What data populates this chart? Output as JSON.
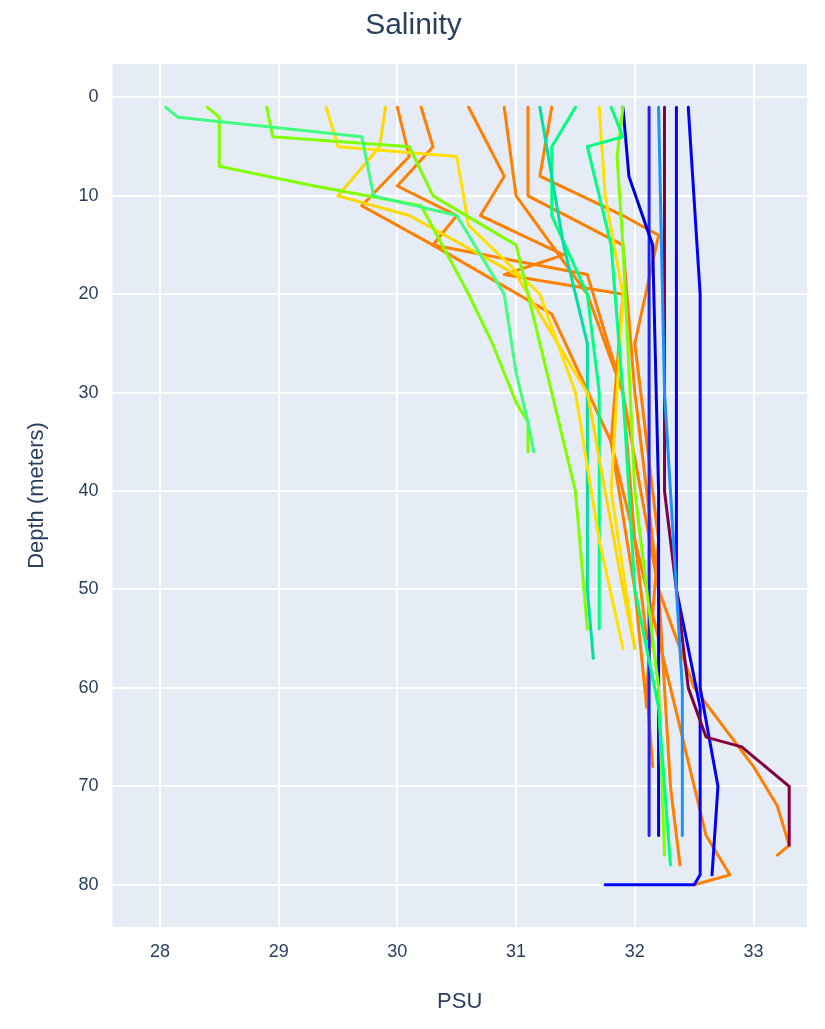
{
  "chart_data": {
    "type": "line",
    "title": "Salinity",
    "xlabel": "PSU",
    "ylabel": "Depth (meters)",
    "xlim": [
      27.6,
      33.45
    ],
    "xticks": [
      28,
      29,
      30,
      31,
      32,
      33
    ],
    "ylim": [
      84.3,
      -3.4
    ],
    "yticks": [
      0,
      10,
      20,
      30,
      40,
      50,
      60,
      70,
      80
    ],
    "grid": true,
    "series": [
      {
        "color": "#40ff80",
        "x": [
          28.05,
          28.15,
          29.7,
          29.8,
          30.5,
          30.9,
          31.0,
          31.1,
          31.15
        ],
        "values": [
          1,
          2,
          4,
          10,
          12,
          20,
          28,
          33,
          36
        ]
      },
      {
        "color": "#7fff00",
        "x": [
          28.4,
          28.5,
          28.5,
          29.3,
          30.2,
          30.6,
          30.8,
          30.9,
          31.0,
          31.1,
          31.1
        ],
        "values": [
          1,
          2,
          7,
          9,
          11,
          20,
          25,
          28,
          31,
          33,
          36
        ]
      },
      {
        "color": "#7fff00",
        "x": [
          28.9,
          28.95,
          30.1,
          30.3,
          31.0,
          31.3,
          31.5,
          31.6
        ],
        "values": [
          1,
          4,
          5,
          10,
          15,
          30,
          40,
          54
        ]
      },
      {
        "color": "#ffe000",
        "x": [
          29.4,
          29.5,
          30.5,
          30.6,
          31.2,
          31.5,
          31.7,
          31.9
        ],
        "values": [
          1,
          5,
          6,
          13,
          20,
          30,
          45,
          56
        ]
      },
      {
        "color": "#ffd700",
        "x": [
          29.9,
          29.85,
          29.5,
          30.1,
          31.0,
          31.6,
          31.9,
          32.0
        ],
        "values": [
          1,
          5,
          10,
          12,
          18,
          30,
          50,
          56
        ]
      },
      {
        "color": "#00e0a0",
        "x": [
          31.2,
          31.4,
          31.6,
          31.6,
          31.65
        ],
        "values": [
          1,
          15,
          25,
          50,
          57
        ]
      },
      {
        "color": "#00ff80",
        "x": [
          31.5,
          31.3,
          31.3,
          31.6,
          31.7,
          31.7
        ],
        "values": [
          1,
          5,
          12,
          20,
          30,
          54
        ]
      },
      {
        "color": "#00ff80",
        "x": [
          31.8,
          31.9,
          31.6,
          31.8,
          31.9,
          32.0,
          32.2,
          32.3
        ],
        "values": [
          1,
          4,
          5,
          15,
          30,
          50,
          62,
          78
        ]
      },
      {
        "color": "#80ff00",
        "x": [
          31.9,
          31.85,
          31.9,
          32.0,
          32.2,
          32.25
        ],
        "values": [
          1,
          6,
          15,
          40,
          60,
          77
        ]
      },
      {
        "color": "#ffe000",
        "x": [
          31.7,
          31.75,
          31.9,
          31.8,
          32.0
        ],
        "values": [
          1,
          10,
          20,
          40,
          56
        ]
      },
      {
        "color": "#0000dd",
        "x": [
          31.9,
          31.95,
          32.15,
          32.2,
          32.2
        ],
        "values": [
          1,
          8,
          15,
          40,
          75
        ]
      },
      {
        "color": "#2020ff",
        "x": [
          32.12,
          32.12
        ],
        "values": [
          1,
          75
        ]
      },
      {
        "color": "#1e90ff",
        "x": [
          32.2,
          32.25,
          32.4,
          32.4
        ],
        "values": [
          1,
          30,
          60,
          75
        ]
      },
      {
        "color": "#800040",
        "x": [
          32.25,
          32.25,
          32.45,
          32.6,
          32.9,
          33.3,
          33.3
        ],
        "values": [
          1,
          40,
          60,
          65,
          66,
          70,
          76
        ]
      },
      {
        "color": "#0000ff",
        "x": [
          32.35,
          32.35,
          32.55,
          32.55,
          32.5,
          31.75
        ],
        "values": [
          1,
          50,
          62,
          79,
          80,
          80
        ]
      },
      {
        "color": "#0000ff",
        "x": [
          32.45,
          32.55,
          32.55,
          32.7,
          32.65
        ],
        "values": [
          1,
          20,
          60,
          70,
          79
        ]
      },
      {
        "color": "#ff7f00",
        "x": [
          30.0,
          30.1,
          29.7,
          30.3,
          31.3,
          31.8,
          32.0,
          32.1
        ],
        "values": [
          1,
          6,
          11,
          15,
          22,
          35,
          50,
          62
        ]
      },
      {
        "color": "#ff7f00",
        "x": [
          30.2,
          30.3,
          30.0,
          30.5,
          30.3,
          31.6,
          31.9,
          32.2,
          32.3,
          32.38
        ],
        "values": [
          1,
          5,
          9,
          12,
          15,
          18,
          30,
          50,
          70,
          78
        ]
      },
      {
        "color": "#ff7f00",
        "x": [
          30.6,
          30.9,
          30.7,
          31.4,
          30.9,
          31.9,
          31.8,
          32.3,
          32.5,
          32.6,
          32.8,
          32.5
        ],
        "values": [
          1,
          8,
          12,
          16,
          18,
          20,
          35,
          60,
          70,
          75,
          79,
          80
        ]
      },
      {
        "color": "#ff7f00",
        "x": [
          31.1,
          31.1,
          31.9,
          32.0,
          32.2,
          32.5,
          33.0,
          33.2,
          33.3,
          33.2
        ],
        "values": [
          1,
          10,
          15,
          30,
          50,
          60,
          68,
          72,
          76,
          77
        ]
      },
      {
        "color": "#ff7f00",
        "x": [
          31.3,
          31.2,
          31.9,
          32.2,
          32.0,
          32.2,
          32.1,
          32.15
        ],
        "values": [
          1,
          8,
          12,
          14,
          25,
          45,
          60,
          68
        ]
      },
      {
        "color": "#ff7f00",
        "x": [
          30.9,
          31.0,
          31.6,
          31.9,
          32.0,
          32.1
        ],
        "values": [
          1,
          10,
          20,
          30,
          45,
          55
        ]
      }
    ]
  }
}
